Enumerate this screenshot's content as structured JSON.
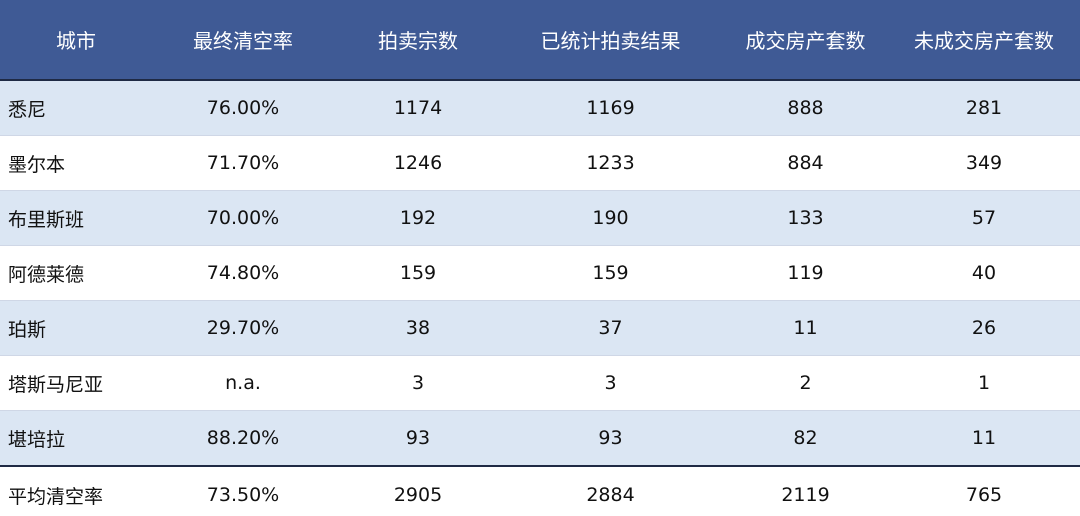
{
  "header": {
    "city": "城市",
    "clearance_rate": "最终清空率",
    "auctions": "拍卖宗数",
    "reported": "已统计拍卖结果",
    "sold": "成交房产套数",
    "unsold": "未成交房产套数"
  },
  "rows": [
    {
      "city": "悉尼",
      "clearance_rate": "76.00%",
      "auctions": "1174",
      "reported": "1169",
      "sold": "888",
      "unsold": "281"
    },
    {
      "city": "墨尔本",
      "clearance_rate": "71.70%",
      "auctions": "1246",
      "reported": "1233",
      "sold": "884",
      "unsold": "349"
    },
    {
      "city": "布里斯班",
      "clearance_rate": "70.00%",
      "auctions": "192",
      "reported": "190",
      "sold": "133",
      "unsold": "57"
    },
    {
      "city": "阿德莱德",
      "clearance_rate": "74.80%",
      "auctions": "159",
      "reported": "159",
      "sold": "119",
      "unsold": "40"
    },
    {
      "city": "珀斯",
      "clearance_rate": "29.70%",
      "auctions": "38",
      "reported": "37",
      "sold": "11",
      "unsold": "26"
    },
    {
      "city": "塔斯马尼亚",
      "clearance_rate": "n.a.",
      "auctions": "3",
      "reported": "3",
      "sold": "2",
      "unsold": "1"
    },
    {
      "city": "堪培拉",
      "clearance_rate": "88.20%",
      "auctions": "93",
      "reported": "93",
      "sold": "82",
      "unsold": "11"
    }
  ],
  "total": {
    "city": "平均清空率",
    "clearance_rate": "73.50%",
    "auctions": "2905",
    "reported": "2884",
    "sold": "2119",
    "unsold": "765"
  },
  "colors": {
    "header_bg": "#3f5a95",
    "header_text": "#ffffff",
    "alt_row_bg": "#dbe6f3"
  }
}
